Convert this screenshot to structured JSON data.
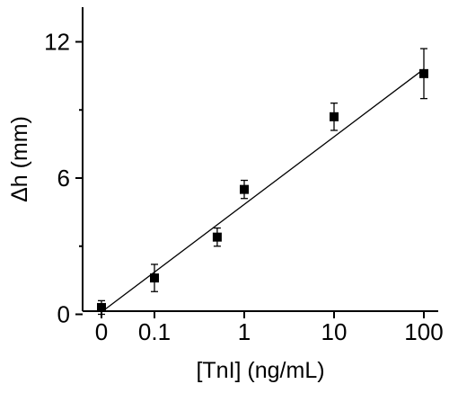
{
  "chart_data": {
    "type": "scatter",
    "title": "",
    "xlabel": "[TnI] (ng/mL)",
    "ylabel": "Δh (mm)",
    "x_tick_labels": [
      "0",
      "0.1",
      "1",
      "10",
      "100"
    ],
    "y_tick_labels": [
      "0",
      "6",
      "12"
    ],
    "ylim": [
      -0.5,
      13.2
    ],
    "grid": false,
    "legend": "none",
    "series": [
      {
        "x": [
          "0",
          "0.1",
          "0.5",
          "1",
          "10",
          "100"
        ],
        "y": [
          0.3,
          1.6,
          3.4,
          5.5,
          8.7,
          10.6
        ],
        "error": [
          0.3,
          0.6,
          0.4,
          0.4,
          0.6,
          1.1
        ]
      }
    ],
    "fit_line": {
      "x": [
        "0",
        "100"
      ],
      "y": [
        0.1,
        10.8
      ]
    },
    "marker_color": "#000000",
    "line_color": "#000000"
  }
}
